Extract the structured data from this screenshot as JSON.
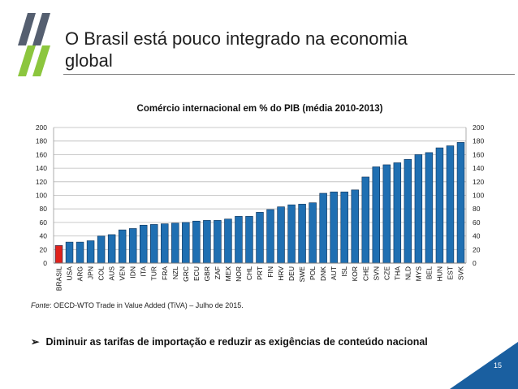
{
  "slide": {
    "title": "O Brasil está pouco integrado na economia\nglobal",
    "source_label": "Fonte",
    "source_text": ": OECD-WTO Trade in Value Added (TiVA) – Julho de 2015.",
    "bullet_marker": "➢",
    "bullet_text": "Diminuir as tarifas de importação e reduzir as exigências de conteúdo nacional",
    "page_number": "15"
  },
  "colors": {
    "bar": "#1f6fb2",
    "highlight": "#e0221c",
    "logo_dark": "#555f70",
    "logo_green": "#8cc63e",
    "corner": "#1a5fa0"
  },
  "chart_data": {
    "type": "bar",
    "title": "Comércio internacional em % do PIB (média 2010-2013)",
    "xlabel": "",
    "ylabel": "",
    "ylim": [
      0,
      200
    ],
    "yticks": [
      0,
      20,
      40,
      60,
      80,
      100,
      120,
      140,
      160,
      180,
      200
    ],
    "highlight": "BRASIL",
    "categories": [
      "BRASIL",
      "USA",
      "ARG",
      "JPN",
      "COL",
      "AUS",
      "VEN",
      "IDN",
      "ITA",
      "TUR",
      "FRA",
      "NZL",
      "GRC",
      "ECU",
      "GBR",
      "ZAF",
      "MEX",
      "NOR",
      "CHL",
      "PRT",
      "FIN",
      "HRV",
      "DEU",
      "SWE",
      "POL",
      "DNK",
      "AUT",
      "ISL",
      "KOR",
      "CHE",
      "SVN",
      "CZE",
      "THA",
      "NLD",
      "MYS",
      "BEL",
      "HUN",
      "EST",
      "SVK"
    ],
    "values": [
      26,
      31,
      31,
      33,
      40,
      42,
      49,
      51,
      56,
      57,
      58,
      59,
      60,
      62,
      63,
      63,
      65,
      69,
      69,
      75,
      79,
      83,
      86,
      87,
      89,
      103,
      105,
      105,
      108,
      127,
      142,
      145,
      148,
      153,
      160,
      163,
      170,
      173,
      178
    ]
  }
}
